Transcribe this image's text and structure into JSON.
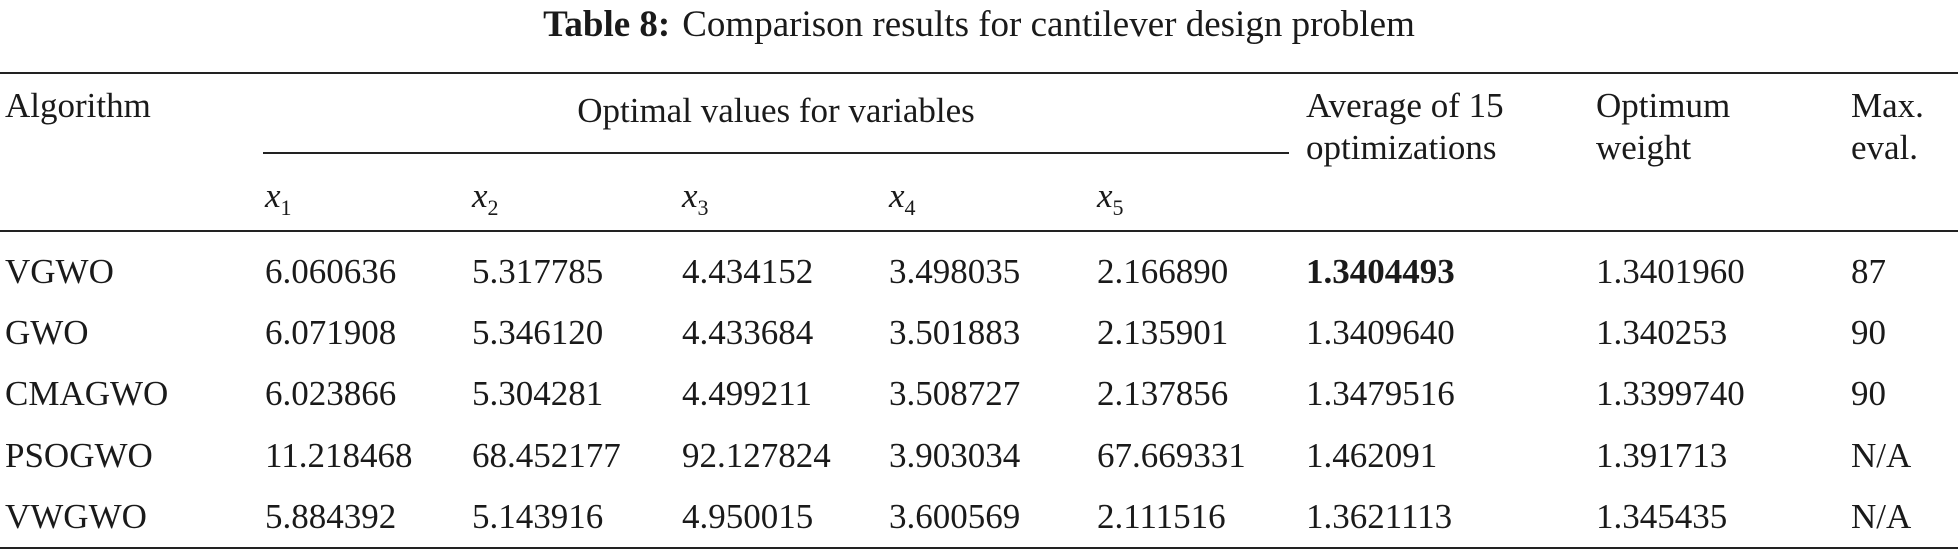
{
  "title": {
    "label": "Table 8:",
    "text": "Comparison results for cantilever design problem"
  },
  "table": {
    "header": {
      "algorithm": "Algorithm",
      "group": "Optimal values for variables",
      "variables": [
        {
          "symbol": "x",
          "index": "1"
        },
        {
          "symbol": "x",
          "index": "2"
        },
        {
          "symbol": "x",
          "index": "3"
        },
        {
          "symbol": "x",
          "index": "4"
        },
        {
          "symbol": "x",
          "index": "5"
        }
      ],
      "average": [
        "Average of 15",
        "optimizations"
      ],
      "optimum": [
        "Optimum",
        "weight"
      ],
      "max_eval": [
        "Max.",
        "eval."
      ]
    },
    "rows": [
      [
        "VGWO",
        "6.060636",
        "5.317785",
        "4.434152",
        "3.498035",
        "2.166890",
        "1.3404493",
        "1.3401960",
        "87"
      ],
      [
        "GWO",
        "6.071908",
        "5.346120",
        "4.433684",
        "3.501883",
        "2.135901",
        "1.3409640",
        "1.340253",
        "90"
      ],
      [
        "CMAGWO",
        "6.023866",
        "5.304281",
        "4.499211",
        "3.508727",
        "2.137856",
        "1.3479516",
        "1.3399740",
        "90"
      ],
      [
        "PSOGWO",
        "11.218468",
        "68.452177",
        "92.127824",
        "3.903034",
        "67.669331",
        "1.462091",
        "1.391713",
        "N/A"
      ],
      [
        "VWGWO",
        "5.884392",
        "5.143916",
        "4.950015",
        "3.600569",
        "2.111516",
        "1.3621113",
        "1.345435",
        "N/A"
      ]
    ]
  }
}
